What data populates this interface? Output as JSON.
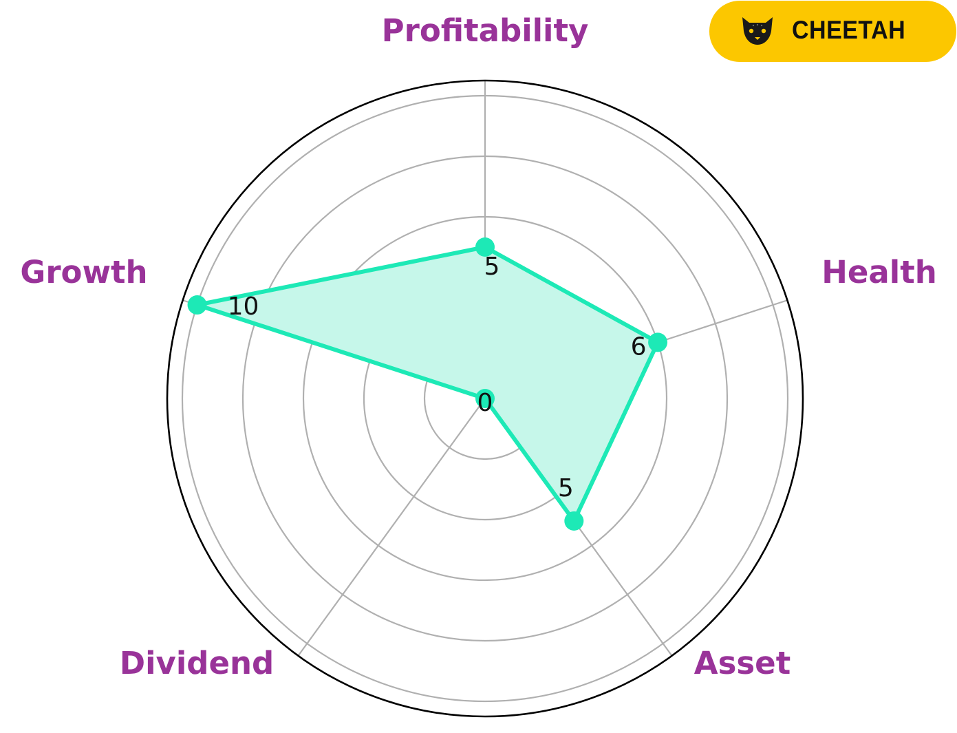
{
  "chart_data": {
    "type": "radar",
    "axes": [
      "Profitability",
      "Health",
      "Asset",
      "Dividend",
      "Growth"
    ],
    "values": [
      5,
      6,
      5,
      0,
      10
    ],
    "value_labels": [
      "5",
      "6",
      "5",
      "0",
      "10"
    ],
    "rmax": 10.5,
    "rings": [
      2,
      4,
      6,
      8,
      10
    ],
    "grid": true,
    "colors": {
      "series": "#1de9b6",
      "fill": "#c6f7ea",
      "axis_label": "#993399",
      "grid": "#b0b0b0",
      "outer_ring": "#000000"
    }
  },
  "badge": {
    "label": "CHEETAH",
    "icon": "cheetah-face-icon",
    "background": "#fcc700"
  }
}
